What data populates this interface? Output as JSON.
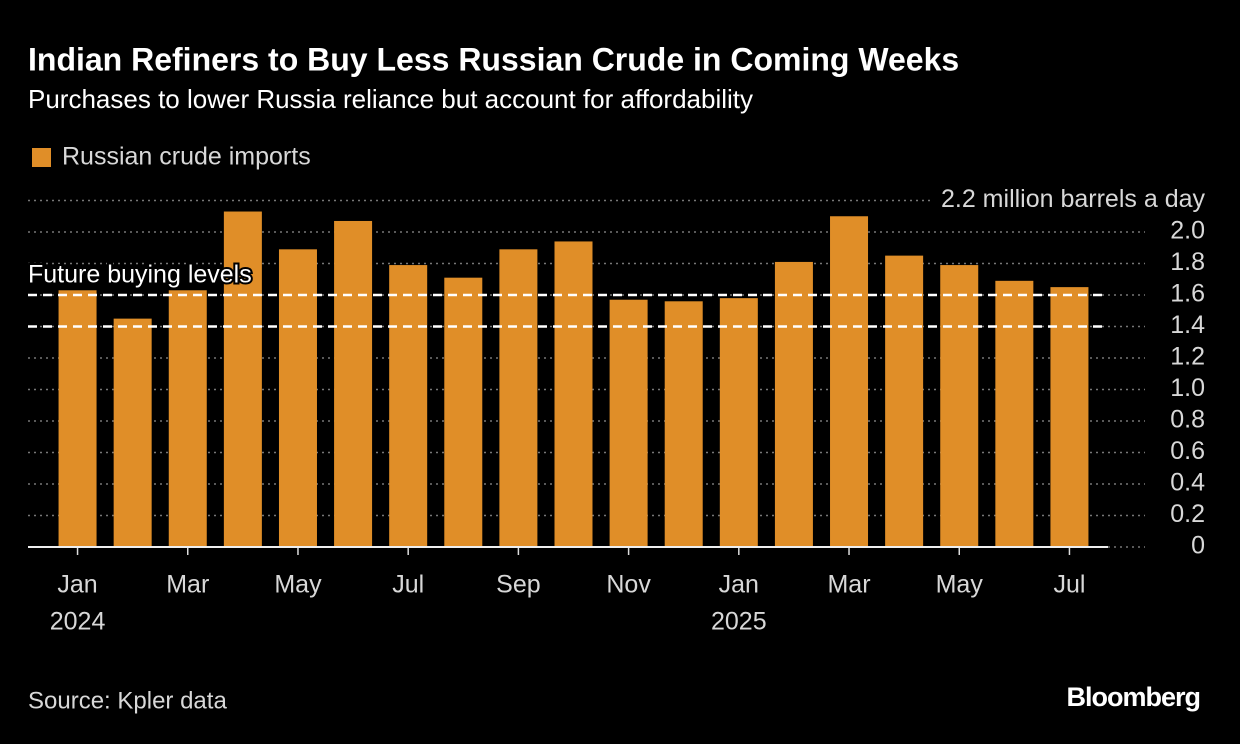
{
  "chart_data": {
    "type": "bar",
    "title": "Indian Refiners to Buy Less Russian Crude in Coming Weeks",
    "subtitle": "Purchases to lower Russia reliance but account for affordability",
    "categories": [
      "Jan",
      null,
      "Mar",
      null,
      "May",
      null,
      "Jul",
      null,
      "Sep",
      null,
      "Nov",
      null,
      "Jan",
      null,
      "Mar",
      null,
      "May",
      null,
      "Jul"
    ],
    "category_years": [
      "2024",
      null,
      null,
      null,
      null,
      null,
      null,
      null,
      null,
      null,
      null,
      null,
      "2025",
      null,
      null,
      null,
      null,
      null,
      null
    ],
    "series": [
      {
        "name": "Russian crude imports",
        "color": "#e08e28",
        "values": [
          1.63,
          1.45,
          1.63,
          2.13,
          1.89,
          2.07,
          1.79,
          1.71,
          1.89,
          1.94,
          1.57,
          1.56,
          1.58,
          1.81,
          2.1,
          1.85,
          1.79,
          1.69,
          1.65
        ]
      }
    ],
    "ylim": [
      0,
      2.2
    ],
    "yticks": [
      0,
      0.2,
      0.4,
      0.6,
      0.8,
      {
        "value": 1,
        "label": "1.0"
      },
      1.2,
      1.4,
      1.6,
      1.8,
      {
        "value": 2,
        "label": "2.0"
      },
      {
        "value": 2.2,
        "label": "2.2 million barrels a day"
      }
    ],
    "grid": true,
    "reference_lines": [
      {
        "value": 1.6
      },
      {
        "value": 1.4
      }
    ],
    "annotation": "Future buying levels",
    "source": "Source: Kpler data",
    "brand": "Bloomberg"
  }
}
